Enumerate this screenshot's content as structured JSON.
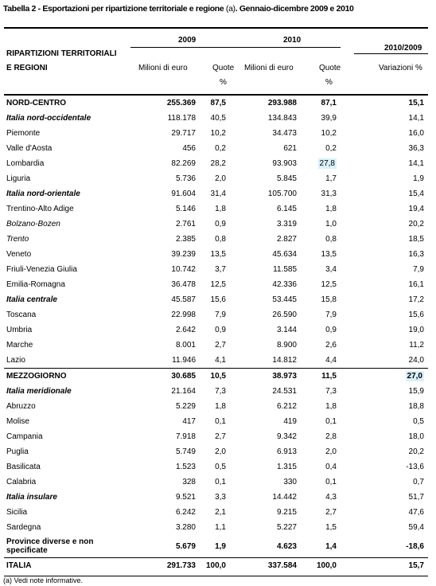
{
  "title": {
    "prefix": "Tabella 2 -",
    "main": "Esportazioni per ripartizione territoriale e regione",
    "note_ref": "(a)",
    "period": ". Gennaio-dicembre 2009 e 2010"
  },
  "header": {
    "col_label_line1": "RIPARTIZIONI TERRITORIALI",
    "col_label_line2": "E REGIONI",
    "year_2009": "2009",
    "year_2010": "2010",
    "period_var": "2010/2009",
    "milioni_2009": "Milioni di euro",
    "quote_2009": "Quote",
    "pct_2009": "%",
    "milioni_2010": "Milioni di euro",
    "quote_2010": "Quote",
    "pct_2010": "%",
    "variazioni": "Variazioni %"
  },
  "rows": [
    {
      "name": "NORD-CENTRO",
      "v2009": "255.369",
      "q2009": "87,5",
      "v2010": "293.988",
      "q2010": "87,1",
      "var": "15,1"
    },
    {
      "name": "Italia nord-occidentale",
      "v2009": "118.178",
      "q2009": "40,5",
      "v2010": "134.843",
      "q2010": "39,9",
      "var": "14,1"
    },
    {
      "name": "Piemonte",
      "v2009": "29.717",
      "q2009": "10,2",
      "v2010": "34.473",
      "q2010": "10,2",
      "var": "16,0"
    },
    {
      "name": "Valle d'Aosta",
      "v2009": "456",
      "q2009": "0,2",
      "v2010": "621",
      "q2010": "0,2",
      "var": "36,3"
    },
    {
      "name": "Lombardia",
      "v2009": "82.269",
      "q2009": "28,2",
      "v2010": "93.903",
      "q2010": "27,8",
      "var": "14,1"
    },
    {
      "name": "Liguria",
      "v2009": "5.736",
      "q2009": "2,0",
      "v2010": "5.845",
      "q2010": "1,7",
      "var": "1,9"
    },
    {
      "name": "Italia nord-orientale",
      "v2009": "91.604",
      "q2009": "31,4",
      "v2010": "105.700",
      "q2010": "31,3",
      "var": "15,4"
    },
    {
      "name": "Trentino-Alto Adige",
      "v2009": "5.146",
      "q2009": "1,8",
      "v2010": "6.145",
      "q2010": "1,8",
      "var": "19,4"
    },
    {
      "name": "Bolzano-Bozen",
      "v2009": "2.761",
      "q2009": "0,9",
      "v2010": "3.319",
      "q2010": "1,0",
      "var": "20,2"
    },
    {
      "name": "Trento",
      "v2009": "2.385",
      "q2009": "0,8",
      "v2010": "2.827",
      "q2010": "0,8",
      "var": "18,5"
    },
    {
      "name": "Veneto",
      "v2009": "39.239",
      "q2009": "13,5",
      "v2010": "45.634",
      "q2010": "13,5",
      "var": "16,3"
    },
    {
      "name": "Friuli-Venezia Giulia",
      "v2009": "10.742",
      "q2009": "3,7",
      "v2010": "11.585",
      "q2010": "3,4",
      "var": "7,9"
    },
    {
      "name": "Emilia-Romagna",
      "v2009": "36.478",
      "q2009": "12,5",
      "v2010": "42.336",
      "q2010": "12,5",
      "var": "16,1"
    },
    {
      "name": "Italia centrale",
      "v2009": "45.587",
      "q2009": "15,6",
      "v2010": "53.445",
      "q2010": "15,8",
      "var": "17,2"
    },
    {
      "name": "Toscana",
      "v2009": "22.998",
      "q2009": "7,9",
      "v2010": "26.590",
      "q2010": "7,9",
      "var": "15,6"
    },
    {
      "name": "Umbria",
      "v2009": "2.642",
      "q2009": "0,9",
      "v2010": "3.144",
      "q2010": "0,9",
      "var": "19,0"
    },
    {
      "name": "Marche",
      "v2009": "8.001",
      "q2009": "2,7",
      "v2010": "8.900",
      "q2010": "2,6",
      "var": "11,2"
    },
    {
      "name": "Lazio",
      "v2009": "11.946",
      "q2009": "4,1",
      "v2010": "14.812",
      "q2010": "4,4",
      "var": "24,0"
    },
    {
      "name": "MEZZOGIORNO",
      "v2009": "30.685",
      "q2009": "10,5",
      "v2010": "38.973",
      "q2010": "11,5",
      "var": "27,0"
    },
    {
      "name": "Italia meridionale",
      "v2009": "21.164",
      "q2009": "7,3",
      "v2010": "24.531",
      "q2010": "7,3",
      "var": "15,9"
    },
    {
      "name": "Abruzzo",
      "v2009": "5.229",
      "q2009": "1,8",
      "v2010": "6.212",
      "q2010": "1,8",
      "var": "18,8"
    },
    {
      "name": "Molise",
      "v2009": "417",
      "q2009": "0,1",
      "v2010": "419",
      "q2010": "0,1",
      "var": "0,5"
    },
    {
      "name": "Campania",
      "v2009": "7.918",
      "q2009": "2,7",
      "v2010": "9.342",
      "q2010": "2,8",
      "var": "18,0"
    },
    {
      "name": "Puglia",
      "v2009": "5.749",
      "q2009": "2,0",
      "v2010": "6.913",
      "q2010": "2,0",
      "var": "20,2"
    },
    {
      "name": "Basilicata",
      "v2009": "1.523",
      "q2009": "0,5",
      "v2010": "1.315",
      "q2010": "0,4",
      "var": "-13,6"
    },
    {
      "name": "Calabria",
      "v2009": "328",
      "q2009": "0,1",
      "v2010": "330",
      "q2010": "0,1",
      "var": "0,7"
    },
    {
      "name": "Italia insulare",
      "v2009": "9.521",
      "q2009": "3,3",
      "v2010": "14.442",
      "q2010": "4,3",
      "var": "51,7"
    },
    {
      "name": "Sicilia",
      "v2009": "6.242",
      "q2009": "2,1",
      "v2010": "9.215",
      "q2010": "2,7",
      "var": "47,6"
    },
    {
      "name": "Sardegna",
      "v2009": "3.280",
      "q2009": "1,1",
      "v2010": "5.227",
      "q2010": "1,5",
      "var": "59,4"
    },
    {
      "name_line1": "Province diverse e non",
      "name_line2": "specificate",
      "v2009": "5.679",
      "q2009": "1,9",
      "v2010": "4.623",
      "q2010": "1,4",
      "var": "-18,6"
    },
    {
      "name": "ITALIA",
      "v2009": "291.733",
      "q2009": "100,0",
      "v2010": "337.584",
      "q2010": "100,0",
      "var": "15,7"
    }
  ],
  "footnote": "(a) Vedi note informative.",
  "colors": {
    "highlight_cell": "#d8f2fb",
    "text": "#000000",
    "rule": "#000000"
  }
}
